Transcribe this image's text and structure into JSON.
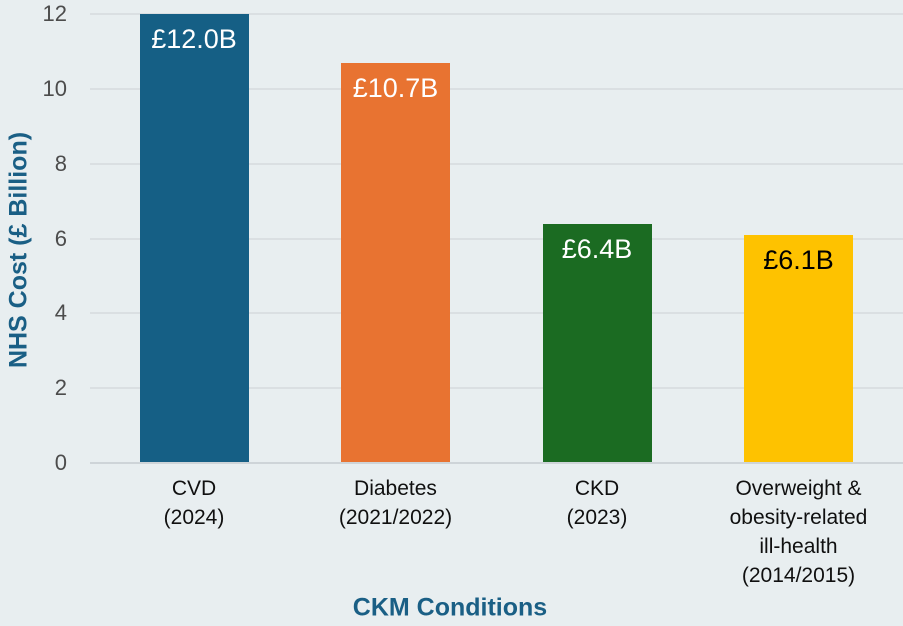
{
  "chart_data": {
    "type": "bar",
    "xlabel": "CKM Conditions",
    "ylabel": "NHS Cost (£ Billion)",
    "ylim": [
      0,
      12
    ],
    "yticks": [
      0,
      2,
      4,
      6,
      8,
      10,
      12
    ],
    "grid": true,
    "legend": false,
    "categories": [
      [
        "CVD",
        "(2024)"
      ],
      [
        "Diabetes",
        "(2021/2022)"
      ],
      [
        "CKD",
        "(2023)"
      ],
      [
        "Overweight &",
        "obesity-related",
        "ill-health",
        "(2014/2015)"
      ]
    ],
    "values": [
      12.0,
      10.7,
      6.4,
      6.1
    ],
    "bar_labels": [
      "£12.0B",
      "£10.7B",
      "£6.4B",
      "£6.1B"
    ],
    "bar_colors": [
      "#155f85",
      "#e87331",
      "#1b6b22",
      "#fec200"
    ],
    "bar_label_colors": [
      "#ffffff",
      "#ffffff",
      "#ffffff",
      "#000000"
    ]
  },
  "colors": {
    "background": "#e8eef0",
    "gridline": "#dadfe2",
    "axis_line": "#ced4d8",
    "axis_title": "#1a5f85",
    "tick_label": "#4c4c4c",
    "category_label": "#101010"
  }
}
